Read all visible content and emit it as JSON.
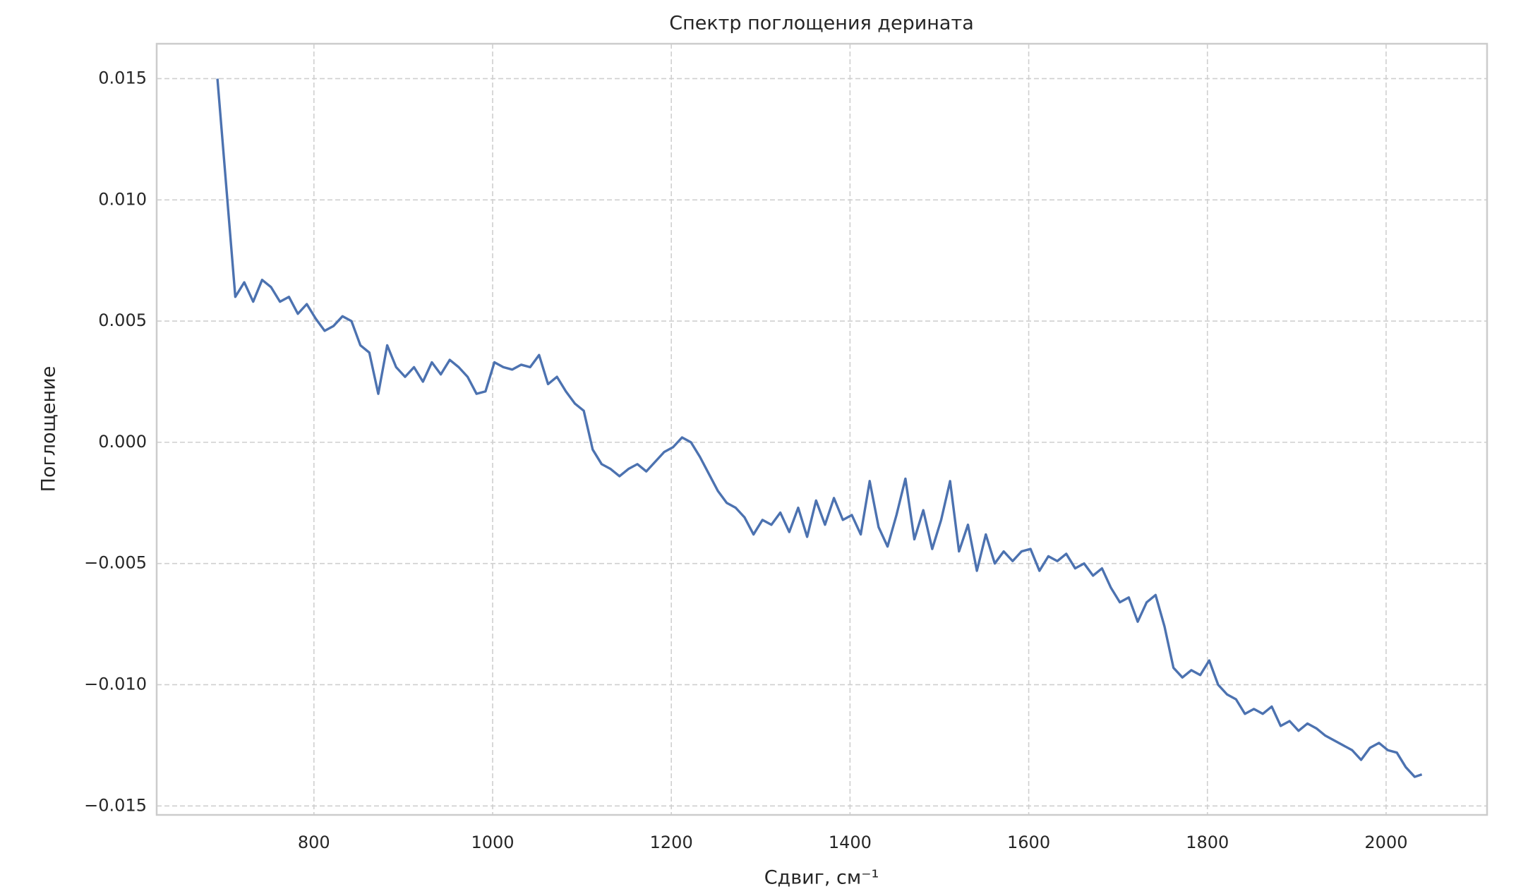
{
  "chart_data": {
    "type": "line",
    "title": "Спектр поглощения дерината",
    "x_label": "Сдвиг, см⁻¹",
    "y_label": "Поглощение",
    "xlim": [
      624,
      2113
    ],
    "ylim": [
      -0.01537,
      0.01644
    ],
    "xticks": [
      800,
      1000,
      1200,
      1400,
      1600,
      1800,
      2000
    ],
    "yticks": [
      0.015,
      {
        "value": 0.01,
        "label": "0.010"
      },
      0.005,
      {
        "value": 0,
        "label": "0.000"
      },
      {
        "value": -0.005,
        "label": "−0.005"
      },
      {
        "value": -0.01,
        "label": "−0.010"
      },
      {
        "value": -0.015,
        "label": "−0.015"
      }
    ],
    "grid": true,
    "x": [
      692,
      702,
      712,
      722,
      732,
      742,
      752,
      762,
      772,
      782,
      792,
      802,
      812,
      822,
      832,
      842,
      852,
      862,
      872,
      882,
      892,
      902,
      912,
      922,
      932,
      942,
      952,
      962,
      972,
      982,
      992,
      1002,
      1012,
      1022,
      1032,
      1042,
      1052,
      1062,
      1072,
      1082,
      1092,
      1102,
      1112,
      1122,
      1132,
      1142,
      1152,
      1162,
      1172,
      1182,
      1192,
      1202,
      1212,
      1222,
      1232,
      1242,
      1252,
      1262,
      1272,
      1282,
      1292,
      1302,
      1312,
      1322,
      1332,
      1342,
      1352,
      1362,
      1372,
      1382,
      1392,
      1402,
      1412,
      1422,
      1432,
      1442,
      1452,
      1462,
      1472,
      1482,
      1492,
      1502,
      1512,
      1522,
      1532,
      1542,
      1552,
      1562,
      1572,
      1582,
      1592,
      1602,
      1612,
      1622,
      1632,
      1642,
      1652,
      1662,
      1672,
      1682,
      1692,
      1702,
      1712,
      1722,
      1732,
      1742,
      1752,
      1762,
      1772,
      1782,
      1792,
      1802,
      1812,
      1822,
      1832,
      1842,
      1852,
      1862,
      1872,
      1882,
      1892,
      1902,
      1912,
      1922,
      1932,
      1942,
      1952,
      1962,
      1972,
      1982,
      1992,
      2002,
      2012,
      2022,
      2032,
      2040
    ],
    "series": [
      {
        "color": "#4c72b0",
        "values": [
          0.015,
          0.0105,
          0.006,
          0.0066,
          0.0058,
          0.0067,
          0.0064,
          0.0058,
          0.006,
          0.0053,
          0.0057,
          0.0051,
          0.0046,
          0.0048,
          0.0052,
          0.005,
          0.004,
          0.0037,
          0.002,
          0.004,
          0.0031,
          0.0027,
          0.0031,
          0.0025,
          0.0033,
          0.0028,
          0.0034,
          0.0031,
          0.0027,
          0.002,
          0.0021,
          0.0033,
          0.0031,
          0.003,
          0.0032,
          0.0031,
          0.0036,
          0.0024,
          0.0027,
          0.0021,
          0.0016,
          0.0013,
          -0.0003,
          -0.0009,
          -0.0011,
          -0.0014,
          -0.0011,
          -0.0009,
          -0.0012,
          -0.0008,
          -0.0004,
          -0.0002,
          0.0002,
          0.0,
          -0.0006,
          -0.0013,
          -0.002,
          -0.0025,
          -0.0027,
          -0.0031,
          -0.0038,
          -0.0032,
          -0.0034,
          -0.0029,
          -0.0037,
          -0.0027,
          -0.0039,
          -0.0024,
          -0.0034,
          -0.0023,
          -0.0032,
          -0.003,
          -0.0038,
          -0.0016,
          -0.0035,
          -0.0043,
          -0.003,
          -0.0015,
          -0.004,
          -0.0028,
          -0.0044,
          -0.0032,
          -0.0016,
          -0.0045,
          -0.0034,
          -0.0053,
          -0.0038,
          -0.005,
          -0.0045,
          -0.0049,
          -0.0045,
          -0.0044,
          -0.0053,
          -0.0047,
          -0.0049,
          -0.0046,
          -0.0052,
          -0.005,
          -0.0055,
          -0.0052,
          -0.006,
          -0.0066,
          -0.0064,
          -0.0074,
          -0.0066,
          -0.0063,
          -0.0076,
          -0.0093,
          -0.0097,
          -0.0094,
          -0.0096,
          -0.009,
          -0.01,
          -0.0104,
          -0.0106,
          -0.0112,
          -0.011,
          -0.0112,
          -0.0109,
          -0.0117,
          -0.0115,
          -0.0119,
          -0.0116,
          -0.0118,
          -0.0121,
          -0.0123,
          -0.0125,
          -0.0127,
          -0.0131,
          -0.0126,
          -0.0124,
          -0.0127,
          -0.0128,
          -0.0134,
          -0.0138,
          -0.0137
        ]
      }
    ]
  }
}
